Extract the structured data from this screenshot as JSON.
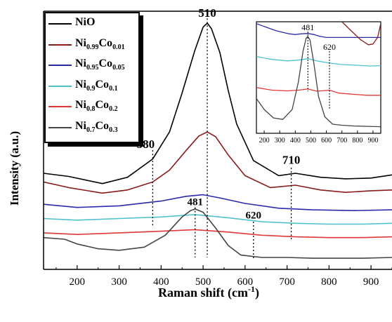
{
  "chart_data": [
    {
      "type": "line",
      "title": "",
      "xlabel": "Raman shift",
      "xlabel_unit": "(cm",
      "xlabel_unit_sup": "-1",
      "xlabel_unit_close": ")",
      "ylabel": "Intensity (a.u.)",
      "xlim": [
        120,
        950
      ],
      "x_ticks": [
        200,
        300,
        400,
        500,
        600,
        700,
        800,
        900
      ],
      "y_ticks": [],
      "grid": false,
      "legend_position": "top-left",
      "series": [
        {
          "name": "NiO",
          "color": "#000000",
          "x": [
            120,
            180,
            260,
            320,
            380,
            420,
            450,
            480,
            500,
            510,
            520,
            540,
            560,
            580,
            620,
            680,
            720,
            780,
            840,
            900,
            950
          ],
          "y": [
            1.41,
            1.37,
            1.28,
            1.36,
            1.59,
            1.93,
            2.42,
            2.95,
            3.25,
            3.3,
            3.23,
            2.93,
            2.45,
            2.03,
            1.57,
            1.38,
            1.41,
            1.36,
            1.34,
            1.35,
            1.39
          ]
        },
        {
          "name": "Ni0.99Co0.01",
          "color": "#8a1a1a",
          "x": [
            120,
            180,
            260,
            320,
            380,
            420,
            460,
            490,
            510,
            530,
            560,
            600,
            660,
            720,
            780,
            840,
            900,
            950
          ],
          "y": [
            1.3,
            1.23,
            1.16,
            1.2,
            1.3,
            1.45,
            1.7,
            1.88,
            1.93,
            1.87,
            1.64,
            1.38,
            1.23,
            1.26,
            1.2,
            1.17,
            1.19,
            1.2
          ]
        },
        {
          "name": "Ni0.95Co0.05",
          "color": "#2a2aa8",
          "x": [
            120,
            200,
            300,
            400,
            460,
            500,
            540,
            600,
            680,
            760,
            860,
            950
          ],
          "y": [
            1.02,
            0.98,
            1.0,
            1.06,
            1.12,
            1.14,
            1.1,
            1.03,
            0.97,
            0.95,
            0.94,
            0.95
          ]
        },
        {
          "name": "Ni0.9Co0.1",
          "color": "#4ec2cc",
          "x": [
            120,
            200,
            300,
            400,
            480,
            560,
            640,
            720,
            800,
            880,
            950
          ],
          "y": [
            0.84,
            0.82,
            0.84,
            0.86,
            0.89,
            0.85,
            0.8,
            0.78,
            0.77,
            0.77,
            0.78
          ]
        },
        {
          "name": "Ni0.8Co0.2",
          "color": "#e03838",
          "x": [
            120,
            200,
            300,
            400,
            480,
            560,
            640,
            720,
            800,
            880,
            950
          ],
          "y": [
            0.66,
            0.64,
            0.66,
            0.68,
            0.7,
            0.67,
            0.63,
            0.61,
            0.6,
            0.6,
            0.61
          ]
        },
        {
          "name": "Ni0.7Co0.3",
          "color": "#444444",
          "x": [
            120,
            170,
            200,
            250,
            300,
            360,
            410,
            450,
            470,
            481,
            500,
            530,
            560,
            590,
            640,
            700,
            760,
            820,
            880,
            950
          ],
          "y": [
            0.6,
            0.58,
            0.52,
            0.46,
            0.44,
            0.48,
            0.63,
            0.86,
            0.94,
            0.96,
            0.92,
            0.72,
            0.5,
            0.38,
            0.35,
            0.35,
            0.34,
            0.34,
            0.34,
            0.35
          ]
        }
      ],
      "annotations": [
        {
          "label": "510",
          "x": 510
        },
        {
          "label": "380",
          "x": 380
        },
        {
          "label": "710",
          "x": 710
        },
        {
          "label": "481",
          "x": 481
        },
        {
          "label": "620",
          "x": 620
        }
      ]
    },
    {
      "type": "line",
      "title": "",
      "xlim": [
        150,
        950
      ],
      "x_ticks": [
        200,
        300,
        400,
        500,
        600,
        700,
        800,
        900
      ],
      "grid": false,
      "series_note_free": true,
      "series": [
        {
          "color": "#2a2aa8",
          "x": [
            150,
            200,
            280,
            360,
            400,
            440,
            481,
            520,
            560,
            600,
            640,
            700,
            780,
            860,
            950
          ],
          "y": [
            3.3,
            3.22,
            3.1,
            3.02,
            3.0,
            3.02,
            3.03,
            3.0,
            2.95,
            2.92,
            2.92,
            2.92,
            2.92,
            2.92,
            2.92
          ]
        },
        {
          "color": "#8a1a1a",
          "x": [
            700,
            760,
            820,
            870,
            900,
            930,
            950
          ],
          "y": [
            3.35,
            3.1,
            2.86,
            2.72,
            2.74,
            2.92,
            3.3
          ]
        },
        {
          "color": "#4ec2cc",
          "x": [
            150,
            250,
            350,
            420,
            481,
            540,
            620,
            700,
            800,
            880,
            950
          ],
          "y": [
            2.4,
            2.32,
            2.28,
            2.3,
            2.34,
            2.28,
            2.22,
            2.18,
            2.16,
            2.14,
            2.15
          ]
        },
        {
          "color": "#e03838",
          "x": [
            150,
            250,
            350,
            420,
            481,
            540,
            620,
            680,
            760,
            860,
            950
          ],
          "y": [
            1.55,
            1.48,
            1.46,
            1.48,
            1.51,
            1.45,
            1.48,
            1.4,
            1.37,
            1.34,
            1.34
          ]
        },
        {
          "color": "#444444",
          "x": [
            150,
            200,
            260,
            320,
            380,
            420,
            450,
            470,
            481,
            495,
            520,
            550,
            590,
            640,
            700,
            780,
            860,
            950
          ],
          "y": [
            1.25,
            0.95,
            0.72,
            0.68,
            0.95,
            1.7,
            2.55,
            2.9,
            2.95,
            2.85,
            2.2,
            1.3,
            0.75,
            0.55,
            0.52,
            0.5,
            0.49,
            0.48
          ]
        }
      ],
      "annotations": [
        {
          "label": "481",
          "x": 481
        },
        {
          "label": "620",
          "x": 620
        }
      ]
    }
  ],
  "legend": [
    {
      "base1": "NiO",
      "sub1": "",
      "base2": "",
      "sub2": "",
      "color": "#000000"
    },
    {
      "base1": "Ni",
      "sub1": "0.99",
      "base2": "Co",
      "sub2": "0.01",
      "color": "#8a1a1a"
    },
    {
      "base1": "Ni",
      "sub1": "0.95",
      "base2": "Co",
      "sub2": "0.05",
      "color": "#2a2aa8"
    },
    {
      "base1": "Ni",
      "sub1": "0.9",
      "base2": "Co",
      "sub2": "0.1",
      "color": "#4ec2cc"
    },
    {
      "base1": "Ni",
      "sub1": "0.8",
      "base2": "Co",
      "sub2": "0.2",
      "color": "#e03838"
    },
    {
      "base1": "Ni",
      "sub1": "0.7",
      "base2": "Co",
      "sub2": "0.3",
      "color": "#444444"
    }
  ]
}
